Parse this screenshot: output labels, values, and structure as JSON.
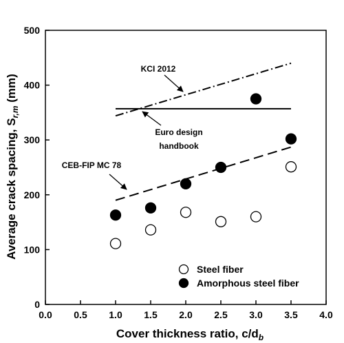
{
  "chart_data": {
    "type": "scatter",
    "xlabel": "Cover thickness ratio, c/d",
    "xlabel_sub": "b",
    "ylabel": "Average crack spacing, S",
    "ylabel_sub": "r,m",
    "ylabel_suffix": " (mm)",
    "xlim": [
      0.0,
      4.0
    ],
    "ylim": [
      0,
      500
    ],
    "x_ticks": [
      "0.0",
      "0.5",
      "1.0",
      "1.5",
      "2.0",
      "2.5",
      "3.0",
      "3.5",
      "4.0"
    ],
    "y_ticks": [
      "0",
      "100",
      "200",
      "300",
      "400",
      "500"
    ],
    "grid": false,
    "legend_position": "bottom-right",
    "series": [
      {
        "name": "Steel fiber",
        "marker": "open-circle",
        "color": "#000000",
        "x": [
          1.0,
          1.5,
          2.0,
          2.5,
          3.0,
          3.5
        ],
        "y": [
          111,
          136,
          168,
          151,
          160,
          251
        ]
      },
      {
        "name": "Amorphous steel fiber",
        "marker": "filled-circle",
        "color": "#000000",
        "x": [
          1.0,
          1.5,
          2.0,
          2.5,
          3.0,
          3.5
        ],
        "y": [
          163,
          176,
          220,
          250,
          375,
          302
        ]
      }
    ],
    "reference_lines": [
      {
        "name": "KCI 2012",
        "style": "dash-dot",
        "x": [
          1.0,
          3.5
        ],
        "y": [
          344,
          440
        ]
      },
      {
        "name": "Euro design handbook",
        "style": "solid",
        "x": [
          1.0,
          3.5
        ],
        "y": [
          357,
          357
        ]
      },
      {
        "name": "CEB-FIP MC 78",
        "style": "dashed",
        "x": [
          1.0,
          3.5
        ],
        "y": [
          190,
          287
        ]
      }
    ],
    "annotations": [
      {
        "text": "KCI 2012"
      },
      {
        "text": "Euro design"
      },
      {
        "text": "handbook"
      },
      {
        "text": "CEB-FIP MC 78"
      }
    ]
  }
}
